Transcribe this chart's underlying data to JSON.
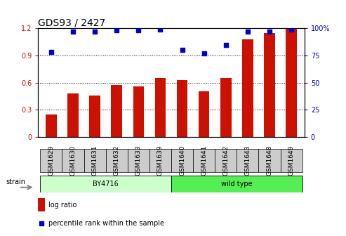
{
  "title": "GDS93 / 2427",
  "categories": [
    "GSM1629",
    "GSM1630",
    "GSM1631",
    "GSM1632",
    "GSM1633",
    "GSM1639",
    "GSM1640",
    "GSM1641",
    "GSM1642",
    "GSM1643",
    "GSM1648",
    "GSM1649"
  ],
  "log_ratio": [
    0.25,
    0.48,
    0.46,
    0.57,
    0.56,
    0.65,
    0.63,
    0.5,
    0.65,
    1.08,
    1.15,
    1.2
  ],
  "percentile_rank": [
    78,
    97,
    97,
    98,
    98,
    99,
    80,
    77,
    85,
    97,
    97,
    99
  ],
  "group1_label": "BY4716",
  "group1_count": 6,
  "group2_label": "wild type",
  "group2_count": 6,
  "bar_color": "#cc1100",
  "dot_color": "#0000cc",
  "group1_bg": "#ccffcc",
  "group2_bg": "#55ee55",
  "tick_bg": "#cccccc",
  "ylim_left": [
    0,
    1.2
  ],
  "ylim_right": [
    0,
    100
  ],
  "yticks_left": [
    0,
    0.3,
    0.6,
    0.9,
    1.2
  ],
  "yticks_right": [
    0,
    25,
    50,
    75,
    100
  ],
  "legend_log": "log ratio",
  "legend_pct": "percentile rank within the sample",
  "strain_label": "strain",
  "title_fontsize": 10,
  "tick_fontsize": 7,
  "bar_width": 0.5
}
